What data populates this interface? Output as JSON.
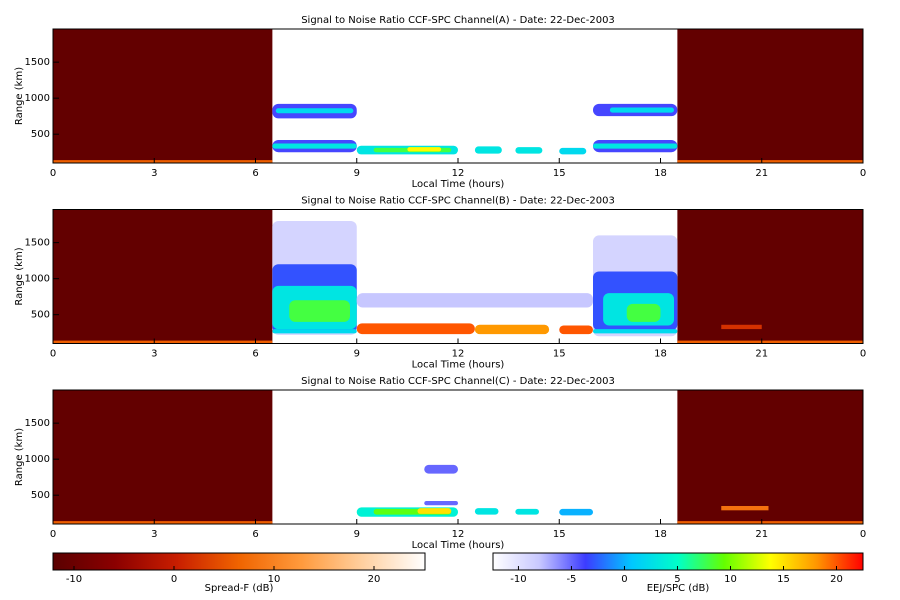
{
  "chart_data": [
    {
      "type": "heatmap",
      "title": "Signal to Noise Ratio CCF-SPC Channel(A) - Date: 22-Dec-2003",
      "xlabel": "Local Time (hours)",
      "ylabel": "Range (km)",
      "xlim": [
        0,
        24
      ],
      "xticks": [
        0,
        3,
        6,
        9,
        12,
        15,
        18,
        21,
        {
          "value": 24,
          "label": "0"
        }
      ],
      "ylim": [
        100,
        1960
      ],
      "yticks": [
        500,
        1000,
        1500
      ],
      "spread_f": [
        {
          "x": [
            0,
            6.5
          ],
          "range": [
            100,
            1960
          ],
          "value": -11
        },
        {
          "x": [
            18.5,
            24
          ],
          "range": [
            100,
            1960
          ],
          "value": -11
        },
        {
          "x": [
            0,
            6.5
          ],
          "range": [
            100,
            140
          ],
          "value": 6
        },
        {
          "x": [
            18.5,
            24
          ],
          "range": [
            100,
            140
          ],
          "value": 6
        }
      ],
      "eej": [
        {
          "x": [
            6.5,
            9
          ],
          "range": [
            720,
            920
          ],
          "value": -4
        },
        {
          "x": [
            6.6,
            8.9
          ],
          "range": [
            790,
            860
          ],
          "value": 2
        },
        {
          "x": [
            6.5,
            9
          ],
          "range": [
            250,
            420
          ],
          "value": -4
        },
        {
          "x": [
            6.5,
            9
          ],
          "range": [
            300,
            370
          ],
          "value": 3
        },
        {
          "x": [
            9,
            12
          ],
          "range": [
            220,
            340
          ],
          "value": 3
        },
        {
          "x": [
            9.5,
            11.8
          ],
          "range": [
            250,
            310
          ],
          "value": 8
        },
        {
          "x": [
            10.5,
            11.5
          ],
          "range": [
            260,
            320
          ],
          "value": 14
        },
        {
          "x": [
            12.5,
            13.3
          ],
          "range": [
            230,
            330
          ],
          "value": 3
        },
        {
          "x": [
            13.7,
            14.5
          ],
          "range": [
            230,
            320
          ],
          "value": 3
        },
        {
          "x": [
            15,
            15.8
          ],
          "range": [
            220,
            310
          ],
          "value": 2
        },
        {
          "x": [
            16,
            18.5
          ],
          "range": [
            250,
            420
          ],
          "value": -4
        },
        {
          "x": [
            16,
            18.5
          ],
          "range": [
            300,
            370
          ],
          "value": 3
        },
        {
          "x": [
            16,
            18.5
          ],
          "range": [
            750,
            920
          ],
          "value": -4
        },
        {
          "x": [
            16.5,
            18.4
          ],
          "range": [
            800,
            870
          ],
          "value": 2
        }
      ]
    },
    {
      "type": "heatmap",
      "title": "Signal to Noise Ratio CCF-SPC Channel(B) - Date: 22-Dec-2003",
      "xlabel": "Local Time (hours)",
      "ylabel": "Range (km)",
      "xlim": [
        0,
        24
      ],
      "xticks": [
        0,
        3,
        6,
        9,
        12,
        15,
        18,
        21,
        {
          "value": 24,
          "label": "0"
        }
      ],
      "ylim": [
        100,
        1960
      ],
      "yticks": [
        500,
        1000,
        1500
      ],
      "spread_f": [
        {
          "x": [
            0,
            6.5
          ],
          "range": [
            100,
            1960
          ],
          "value": -11
        },
        {
          "x": [
            18.5,
            24
          ],
          "range": [
            100,
            1960
          ],
          "value": -11
        },
        {
          "x": [
            0,
            6.5
          ],
          "range": [
            100,
            140
          ],
          "value": 6
        },
        {
          "x": [
            18.5,
            24
          ],
          "range": [
            100,
            140
          ],
          "value": 6
        },
        {
          "x": [
            19.8,
            21
          ],
          "range": [
            300,
            360
          ],
          "value": 2
        }
      ],
      "eej": [
        {
          "x": [
            6.5,
            9
          ],
          "range": [
            220,
            1800
          ],
          "value": -9
        },
        {
          "x": [
            6.5,
            9
          ],
          "range": [
            250,
            1200
          ],
          "value": -3
        },
        {
          "x": [
            6.5,
            9
          ],
          "range": [
            300,
            900
          ],
          "value": 3
        },
        {
          "x": [
            7,
            8.8
          ],
          "range": [
            400,
            700
          ],
          "value": 8
        },
        {
          "x": [
            6.5,
            9
          ],
          "range": [
            240,
            300
          ],
          "value": 2
        },
        {
          "x": [
            9,
            16
          ],
          "range": [
            600,
            800
          ],
          "value": -8
        },
        {
          "x": [
            9,
            12.5
          ],
          "range": [
            230,
            380
          ],
          "value": 20
        },
        {
          "x": [
            12.5,
            14.7
          ],
          "range": [
            230,
            360
          ],
          "value": 18
        },
        {
          "x": [
            15,
            16
          ],
          "range": [
            230,
            350
          ],
          "value": 20
        },
        {
          "x": [
            16,
            18.5
          ],
          "range": [
            200,
            1600
          ],
          "value": -9
        },
        {
          "x": [
            16,
            18.5
          ],
          "range": [
            280,
            1100
          ],
          "value": -3
        },
        {
          "x": [
            16.3,
            18.4
          ],
          "range": [
            350,
            800
          ],
          "value": 3
        },
        {
          "x": [
            17,
            18
          ],
          "range": [
            400,
            650
          ],
          "value": 8
        },
        {
          "x": [
            16,
            18.5
          ],
          "range": [
            240,
            300
          ],
          "value": 2
        }
      ]
    },
    {
      "type": "heatmap",
      "title": "Signal to Noise Ratio CCF-SPC Channel(C) - Date: 22-Dec-2003",
      "xlabel": "Local Time (hours)",
      "ylabel": "Range (km)",
      "xlim": [
        0,
        24
      ],
      "xticks": [
        0,
        3,
        6,
        9,
        12,
        15,
        18,
        21,
        {
          "value": 24,
          "label": "0"
        }
      ],
      "ylim": [
        100,
        1960
      ],
      "yticks": [
        500,
        1000,
        1500
      ],
      "spread_f": [
        {
          "x": [
            0,
            6.5
          ],
          "range": [
            100,
            1960
          ],
          "value": -11
        },
        {
          "x": [
            18.5,
            24
          ],
          "range": [
            100,
            1960
          ],
          "value": -11
        },
        {
          "x": [
            0,
            6.5
          ],
          "range": [
            100,
            140
          ],
          "value": 6
        },
        {
          "x": [
            18.5,
            24
          ],
          "range": [
            100,
            140
          ],
          "value": 6
        },
        {
          "x": [
            19.8,
            21.2
          ],
          "range": [
            290,
            350
          ],
          "value": 8
        }
      ],
      "eej": [
        {
          "x": [
            11,
            12
          ],
          "range": [
            800,
            920
          ],
          "value": -5
        },
        {
          "x": [
            11,
            12
          ],
          "range": [
            360,
            420
          ],
          "value": -5
        },
        {
          "x": [
            9,
            12
          ],
          "range": [
            200,
            330
          ],
          "value": 4
        },
        {
          "x": [
            9.5,
            11.8
          ],
          "range": [
            230,
            310
          ],
          "value": 9
        },
        {
          "x": [
            10.8,
            11.8
          ],
          "range": [
            240,
            320
          ],
          "value": 15
        },
        {
          "x": [
            12.5,
            13.2
          ],
          "range": [
            230,
            320
          ],
          "value": 3
        },
        {
          "x": [
            13.7,
            14.4
          ],
          "range": [
            230,
            310
          ],
          "value": 3
        },
        {
          "x": [
            15,
            16
          ],
          "range": [
            220,
            310
          ],
          "value": 0
        }
      ]
    },
    {
      "type": "colorbar",
      "label": "Spread-F (dB)",
      "xlim": [
        -12.1,
        25.1
      ],
      "xticks": [
        -10,
        0,
        10,
        20
      ],
      "colors": [
        "#5a0000",
        "#8b0000",
        "#c81e00",
        "#f06400",
        "#ff9a3c",
        "#ffd0a0",
        "#ffffff"
      ]
    },
    {
      "type": "colorbar",
      "label": "EEJ/SPC (dB)",
      "xlim": [
        -12.4,
        22.5
      ],
      "xticks": [
        -10,
        -5,
        0,
        5,
        10,
        15,
        20
      ],
      "colors": [
        "#ffffff",
        "#c8c8ff",
        "#3c3cff",
        "#00c8ff",
        "#00ffc8",
        "#64ff00",
        "#ffff00",
        "#ff9600",
        "#ff0000"
      ]
    }
  ]
}
